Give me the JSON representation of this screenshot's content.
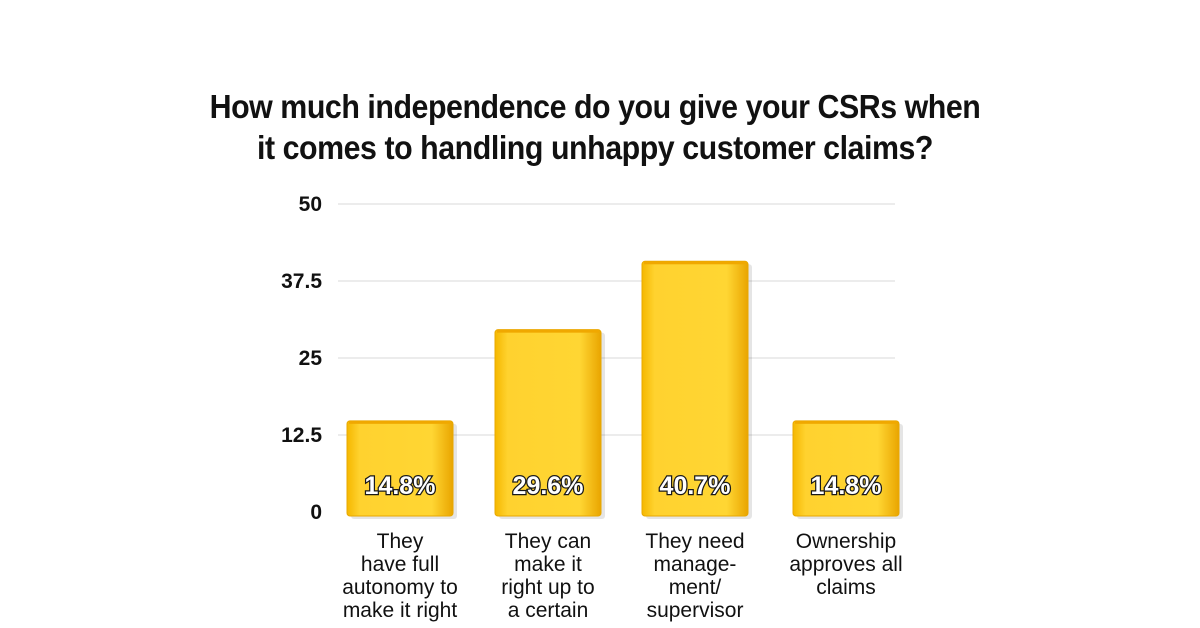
{
  "chart_data": {
    "type": "bar",
    "title_lines": [
      "How much independence do you give your CSRs when",
      "it comes to handling unhappy customer claims?"
    ],
    "categories": [
      "They\nhave full\nautonomy to\nmake it right",
      "They can\nmake it\nright up to\na certain",
      "They need\nmanage-\nment/\nsupervisor",
      "Ownership\napproves all\nclaims"
    ],
    "values": [
      14.8,
      29.6,
      40.7,
      14.8
    ],
    "data_labels": [
      "14.8%",
      "29.6%",
      "40.7%",
      "14.8%"
    ],
    "yticks": [
      0,
      12.5,
      25,
      37.5,
      50
    ],
    "ytick_labels": [
      "0",
      "12.5",
      "25",
      "37.5",
      "50"
    ],
    "ylim": [
      0,
      50
    ],
    "xlabel": "",
    "ylabel": "",
    "grid": true,
    "bar_color": "#FFD12E",
    "bar_edge_color": "#E8A800",
    "grid_color": "#d9d9d9"
  }
}
